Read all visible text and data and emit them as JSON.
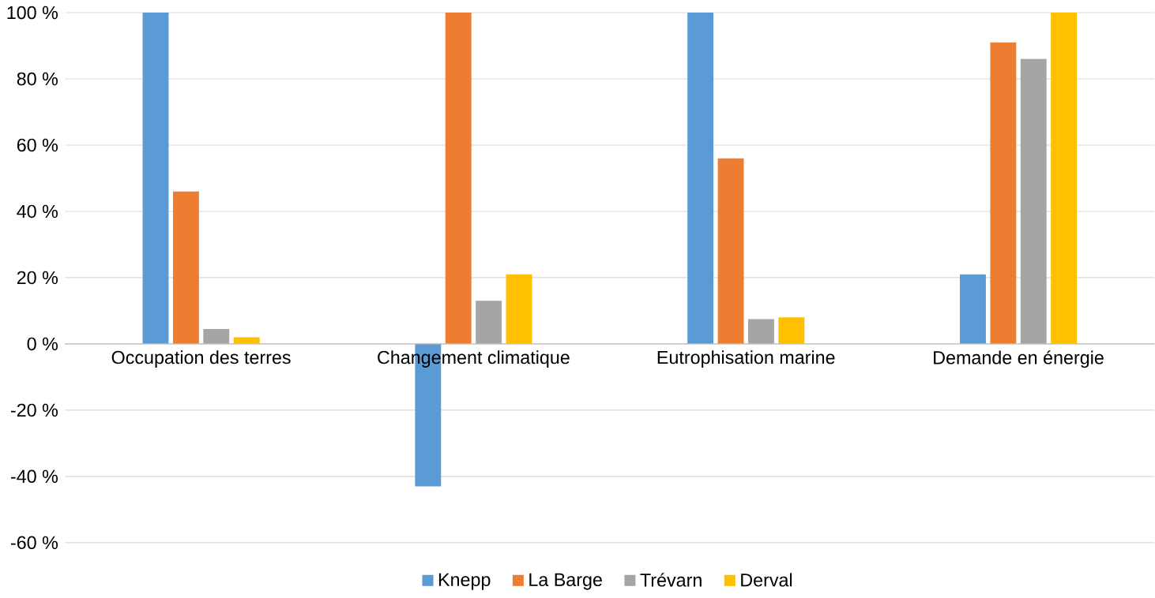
{
  "chart_data": {
    "type": "bar",
    "categories": [
      "Occupation des terres",
      "Changement climatique",
      "Eutrophisation marine",
      "Demande en énergie"
    ],
    "series": [
      {
        "name": "Knepp",
        "color": "#5b9bd5",
        "values": [
          100,
          -43,
          100,
          21
        ]
      },
      {
        "name": "La Barge",
        "color": "#ed7d31",
        "values": [
          46,
          100,
          56,
          91
        ]
      },
      {
        "name": "Trévarn",
        "color": "#a5a5a5",
        "values": [
          4.5,
          13,
          7.5,
          86
        ]
      },
      {
        "name": "Derval",
        "color": "#ffc000",
        "values": [
          2,
          21,
          8,
          100
        ]
      }
    ],
    "ylim": [
      -60,
      100
    ],
    "yticks": [
      {
        "value": -60,
        "label": "-60 %"
      },
      {
        "value": -40,
        "label": "-40 %"
      },
      {
        "value": -20,
        "label": "-20 %"
      },
      {
        "value": 0,
        "label": "0 %"
      },
      {
        "value": 20,
        "label": "20 %"
      },
      {
        "value": 40,
        "label": "40 %"
      },
      {
        "value": 60,
        "label": "60 %"
      },
      {
        "value": 80,
        "label": "80 %"
      },
      {
        "value": 100,
        "label": "100 %"
      }
    ],
    "grid": "y",
    "legend": "bottom"
  }
}
